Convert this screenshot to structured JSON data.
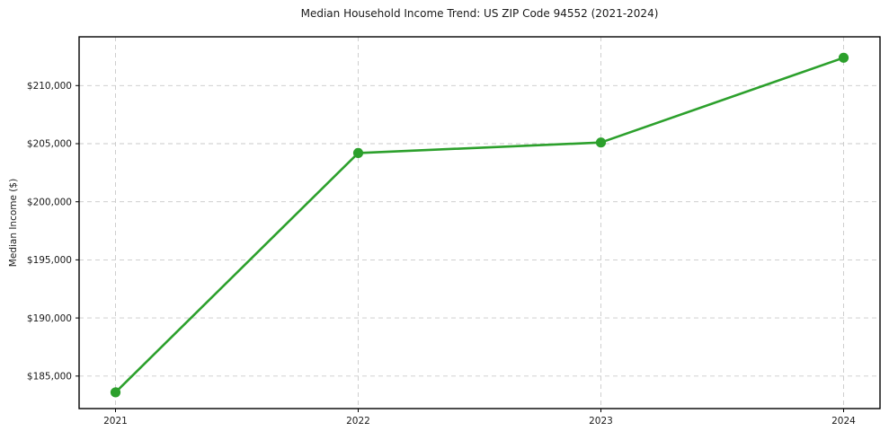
{
  "chart_data": {
    "type": "line",
    "title": "Median Household Income Trend: US ZIP Code 94552 (2021-2024)",
    "xlabel": "",
    "ylabel": "Median Income ($)",
    "x": [
      2021,
      2022,
      2023,
      2024
    ],
    "x_tick_labels": [
      "2021",
      "2022",
      "2023",
      "2024"
    ],
    "series": [
      {
        "name": "Median household income",
        "values": [
          183600,
          204200,
          205100,
          212400
        ]
      }
    ],
    "y_ticks": [
      185000,
      190000,
      195000,
      200000,
      205000,
      210000
    ],
    "y_tick_labels": [
      "$185,000",
      "$190,000",
      "$195,000",
      "$200,000",
      "$205,000",
      "$210,000"
    ],
    "xlim": [
      2020.85,
      2024.15
    ],
    "ylim": [
      182200,
      214200
    ],
    "grid": "dashed-both-axes",
    "legend": "none",
    "colors": {
      "line": "#2ca02c",
      "marker": "#2ca02c",
      "grid": "#c9c9c9",
      "spine": "#000000",
      "text": "#1a1a1a",
      "background": "#ffffff"
    }
  }
}
